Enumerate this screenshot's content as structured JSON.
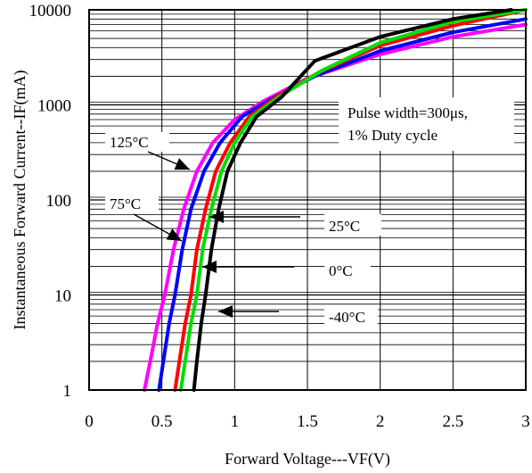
{
  "chart_data": {
    "type": "line",
    "title": "",
    "xlabel": "Forward Voltage---VF(V)",
    "ylabel": "Instantaneous Forward Current--IF(mA)",
    "x_scale": "linear",
    "y_scale": "log",
    "xlim": [
      0,
      3
    ],
    "ylim": [
      1,
      10000
    ],
    "x_ticks": [
      "0",
      "0.5",
      "1",
      "1.5",
      "2",
      "2.5",
      "3"
    ],
    "y_ticks": [
      "1",
      "10",
      "100",
      "1000",
      "10000"
    ],
    "grid": true,
    "annotation": [
      "Pulse width=300μs,",
      "1% Duty cycle"
    ],
    "series": [
      {
        "name": "125°C",
        "color": "#ff00ff",
        "x": [
          0.38,
          0.42,
          0.47,
          0.52,
          0.58,
          0.65,
          0.74,
          0.85,
          1.0,
          1.2,
          1.5,
          2.0,
          2.5,
          3.0
        ],
        "y": [
          1,
          2,
          5,
          10,
          30,
          80,
          200,
          400,
          700,
          1100,
          1900,
          3400,
          5200,
          7000
        ]
      },
      {
        "name": "75°C",
        "color": "#0000ff",
        "x": [
          0.48,
          0.51,
          0.55,
          0.59,
          0.64,
          0.7,
          0.79,
          0.9,
          1.05,
          1.25,
          1.55,
          2.0,
          2.5,
          3.0
        ],
        "y": [
          1,
          2,
          5,
          10,
          30,
          80,
          200,
          400,
          750,
          1150,
          2000,
          3700,
          5800,
          8000
        ]
      },
      {
        "name": "25°C",
        "color": "#ff0000",
        "x": [
          0.59,
          0.62,
          0.66,
          0.7,
          0.74,
          0.8,
          0.87,
          0.97,
          1.1,
          1.28,
          1.58,
          2.0,
          2.5,
          3.0
        ],
        "y": [
          1,
          2,
          5,
          10,
          30,
          80,
          200,
          400,
          750,
          1200,
          2200,
          4200,
          6800,
          10000
        ]
      },
      {
        "name": "0°C",
        "color": "#00dd00",
        "x": [
          0.63,
          0.66,
          0.7,
          0.74,
          0.78,
          0.84,
          0.91,
          1.0,
          1.12,
          1.3,
          1.6,
          2.0,
          2.5,
          3.0
        ],
        "y": [
          1,
          2,
          5,
          10,
          30,
          80,
          200,
          400,
          750,
          1200,
          2300,
          4500,
          7500,
          10000
        ]
      },
      {
        "name": "-40°C",
        "color": "#000000",
        "x": [
          0.72,
          0.74,
          0.77,
          0.8,
          0.84,
          0.89,
          0.95,
          1.04,
          1.15,
          1.32,
          1.55,
          2.0,
          2.5,
          2.9
        ],
        "y": [
          1,
          2,
          5,
          10,
          30,
          80,
          200,
          400,
          750,
          1200,
          2900,
          5200,
          8000,
          10000
        ]
      }
    ]
  }
}
